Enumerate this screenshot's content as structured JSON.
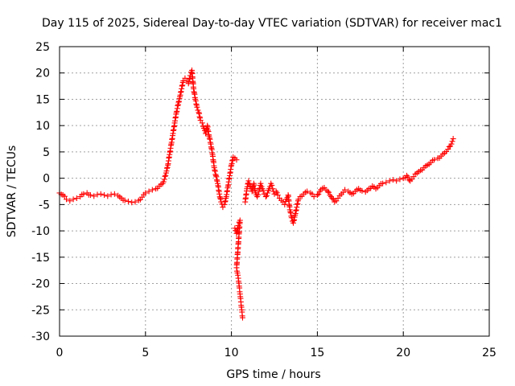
{
  "chart_data": {
    "type": "scatter",
    "title": "Day 115 of 2025, Sidereal Day-to-day VTEC variation (SDTVAR) for receiver mac1",
    "xlabel": "GPS time / hours",
    "ylabel": "SDTVAR / TECUs",
    "xlim": [
      0,
      25
    ],
    "ylim": [
      -30,
      25
    ],
    "xticks": [
      0,
      5,
      10,
      15,
      20,
      25
    ],
    "yticks": [
      25,
      20,
      15,
      10,
      5,
      0,
      -5,
      -10,
      -15,
      -20,
      -25,
      -30
    ],
    "grid": true,
    "marker": "+",
    "color": "#ff0000",
    "series": [
      {
        "name": "SDTVAR",
        "points": [
          [
            0.0,
            -2.8
          ],
          [
            0.2,
            -3.2
          ],
          [
            0.4,
            -4.0
          ],
          [
            0.6,
            -4.3
          ],
          [
            0.8,
            -4.0
          ],
          [
            1.0,
            -3.8
          ],
          [
            1.2,
            -3.5
          ],
          [
            1.4,
            -3.0
          ],
          [
            1.6,
            -2.8
          ],
          [
            1.8,
            -3.2
          ],
          [
            2.0,
            -3.4
          ],
          [
            2.2,
            -3.1
          ],
          [
            2.4,
            -3.0
          ],
          [
            2.6,
            -3.2
          ],
          [
            2.8,
            -3.4
          ],
          [
            3.0,
            -3.1
          ],
          [
            3.2,
            -3.0
          ],
          [
            3.4,
            -3.3
          ],
          [
            3.6,
            -3.8
          ],
          [
            3.8,
            -4.2
          ],
          [
            4.0,
            -4.4
          ],
          [
            4.2,
            -4.6
          ],
          [
            4.4,
            -4.5
          ],
          [
            4.6,
            -4.2
          ],
          [
            4.8,
            -3.6
          ],
          [
            5.0,
            -2.8
          ],
          [
            5.2,
            -2.5
          ],
          [
            5.4,
            -2.2
          ],
          [
            5.6,
            -2.0
          ],
          [
            5.8,
            -1.5
          ],
          [
            6.0,
            -1.0
          ],
          [
            6.1,
            -0.2
          ],
          [
            6.2,
            1.0
          ],
          [
            6.3,
            2.5
          ],
          [
            6.4,
            4.5
          ],
          [
            6.5,
            6.5
          ],
          [
            6.6,
            8.5
          ],
          [
            6.7,
            10.5
          ],
          [
            6.8,
            12.5
          ],
          [
            6.9,
            14.0
          ],
          [
            7.0,
            15.5
          ],
          [
            7.1,
            17.0
          ],
          [
            7.2,
            18.5
          ],
          [
            7.3,
            19.0
          ],
          [
            7.4,
            18.5
          ],
          [
            7.5,
            18.0
          ],
          [
            7.6,
            19.5
          ],
          [
            7.7,
            20.5
          ],
          [
            7.8,
            17.0
          ],
          [
            7.9,
            15.0
          ],
          [
            8.0,
            13.5
          ],
          [
            8.1,
            12.5
          ],
          [
            8.2,
            11.0
          ],
          [
            8.3,
            10.5
          ],
          [
            8.4,
            9.5
          ],
          [
            8.5,
            8.5
          ],
          [
            8.6,
            10.0
          ],
          [
            8.7,
            8.0
          ],
          [
            8.8,
            6.5
          ],
          [
            8.9,
            4.5
          ],
          [
            9.0,
            2.0
          ],
          [
            9.1,
            0.5
          ],
          [
            9.2,
            -1.0
          ],
          [
            9.3,
            -3.0
          ],
          [
            9.4,
            -4.5
          ],
          [
            9.5,
            -5.5
          ],
          [
            9.6,
            -5.0
          ],
          [
            9.7,
            -3.5
          ],
          [
            9.8,
            -1.5
          ],
          [
            9.9,
            0.5
          ],
          [
            10.0,
            2.5
          ],
          [
            10.1,
            4.0
          ],
          [
            10.2,
            3.8
          ],
          [
            10.3,
            3.5
          ],
          [
            10.2,
            -9.5
          ],
          [
            10.3,
            -10.5
          ],
          [
            10.4,
            -9.0
          ],
          [
            10.5,
            -8.0
          ],
          [
            10.3,
            -17.0
          ],
          [
            10.35,
            -18.0
          ],
          [
            10.4,
            -19.0
          ],
          [
            10.45,
            -20.5
          ],
          [
            10.5,
            -22.0
          ],
          [
            10.55,
            -23.5
          ],
          [
            10.6,
            -25.0
          ],
          [
            10.65,
            -26.5
          ],
          [
            10.8,
            -4.5
          ],
          [
            10.9,
            -2.0
          ],
          [
            11.0,
            -0.5
          ],
          [
            11.1,
            -1.5
          ],
          [
            11.2,
            -2.5
          ],
          [
            11.3,
            -1.0
          ],
          [
            11.4,
            -2.8
          ],
          [
            11.5,
            -3.5
          ],
          [
            11.6,
            -2.5
          ],
          [
            11.7,
            -1.0
          ],
          [
            11.8,
            -2.0
          ],
          [
            11.9,
            -3.0
          ],
          [
            12.0,
            -3.5
          ],
          [
            12.1,
            -2.8
          ],
          [
            12.2,
            -2.0
          ],
          [
            12.3,
            -1.0
          ],
          [
            12.4,
            -2.0
          ],
          [
            12.5,
            -3.0
          ],
          [
            12.6,
            -2.5
          ],
          [
            12.7,
            -3.2
          ],
          [
            12.8,
            -3.8
          ],
          [
            12.9,
            -4.2
          ],
          [
            13.0,
            -4.5
          ],
          [
            13.1,
            -5.0
          ],
          [
            13.2,
            -4.0
          ],
          [
            13.3,
            -3.2
          ],
          [
            13.4,
            -6.0
          ],
          [
            13.5,
            -7.5
          ],
          [
            13.6,
            -8.5
          ],
          [
            13.7,
            -7.0
          ],
          [
            13.8,
            -5.5
          ],
          [
            13.9,
            -4.0
          ],
          [
            14.0,
            -3.5
          ],
          [
            14.2,
            -3.0
          ],
          [
            14.4,
            -2.5
          ],
          [
            14.6,
            -2.8
          ],
          [
            14.8,
            -3.5
          ],
          [
            15.0,
            -3.2
          ],
          [
            15.2,
            -2.2
          ],
          [
            15.4,
            -1.8
          ],
          [
            15.6,
            -2.5
          ],
          [
            15.8,
            -3.5
          ],
          [
            16.0,
            -4.5
          ],
          [
            16.2,
            -3.8
          ],
          [
            16.4,
            -3.0
          ],
          [
            16.6,
            -2.2
          ],
          [
            16.8,
            -2.5
          ],
          [
            17.0,
            -3.0
          ],
          [
            17.2,
            -2.5
          ],
          [
            17.4,
            -2.0
          ],
          [
            17.6,
            -2.4
          ],
          [
            17.8,
            -2.6
          ],
          [
            18.0,
            -2.0
          ],
          [
            18.2,
            -1.5
          ],
          [
            18.4,
            -2.0
          ],
          [
            18.6,
            -1.4
          ],
          [
            18.8,
            -1.0
          ],
          [
            19.0,
            -0.8
          ],
          [
            19.2,
            -0.5
          ],
          [
            19.4,
            -0.3
          ],
          [
            19.6,
            -0.5
          ],
          [
            19.8,
            -0.2
          ],
          [
            20.0,
            0.0
          ],
          [
            20.2,
            0.5
          ],
          [
            20.4,
            -0.5
          ],
          [
            20.6,
            0.3
          ],
          [
            20.8,
            1.0
          ],
          [
            21.0,
            1.5
          ],
          [
            21.2,
            2.0
          ],
          [
            21.4,
            2.5
          ],
          [
            21.6,
            3.0
          ],
          [
            21.8,
            3.5
          ],
          [
            22.0,
            3.8
          ],
          [
            22.2,
            4.2
          ],
          [
            22.4,
            4.8
          ],
          [
            22.6,
            5.5
          ],
          [
            22.8,
            6.5
          ],
          [
            22.9,
            7.5
          ]
        ]
      }
    ]
  }
}
